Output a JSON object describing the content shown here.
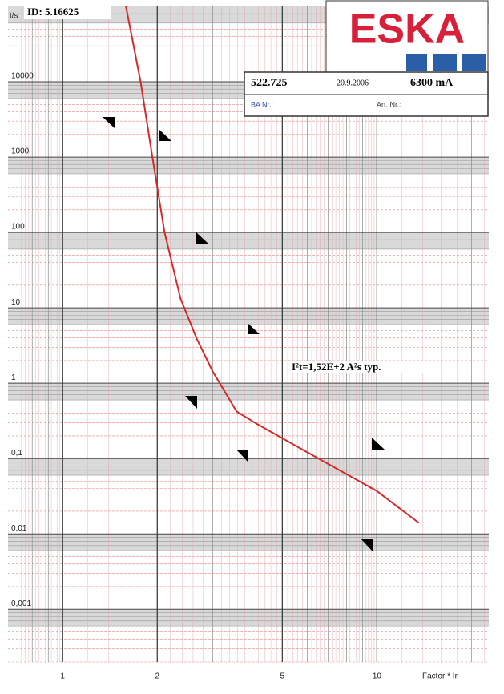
{
  "chart_data": {
    "type": "line",
    "id_label": "ID: 5.16625",
    "y_label": "t/s",
    "x_label": "Factor * Ir",
    "logo": "ESKA",
    "info": {
      "part": "522.725",
      "date": "20.9.2006",
      "rating": "6300 mA",
      "ba": "BA Nr.:",
      "art": "Art. Nr.:"
    },
    "annotation": "I²t=1,52E+2 A²s typ.",
    "log_x": true,
    "log_y": true,
    "grid": true,
    "xlim": [
      0.67,
      22.7
    ],
    "ylim": [
      0.0002,
      100000
    ],
    "xticks": [
      1,
      2,
      5,
      10
    ],
    "yticks": [
      10000,
      1000,
      100,
      10,
      1,
      {
        "value": 0.1,
        "label": "0,1"
      },
      {
        "value": 0.01,
        "label": "0,01"
      },
      {
        "value": 0.001,
        "label": "0,001"
      }
    ],
    "series": [
      {
        "name": null,
        "color": "#d42a2a",
        "x": [
          1.59,
          1.77,
          1.93,
          2.11,
          2.37,
          2.67,
          3.0,
          3.58,
          4.14,
          6.6,
          10,
          13.6
        ],
        "values": [
          100000,
          10000,
          1000,
          100,
          13.4,
          3.9,
          1.44,
          0.42,
          0.29,
          0.097,
          0.037,
          0.014
        ]
      }
    ]
  }
}
